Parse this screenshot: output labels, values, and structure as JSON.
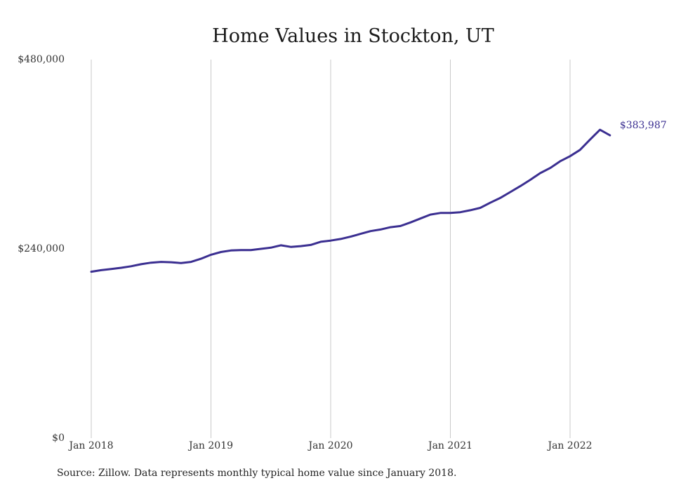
{
  "colors": {
    "line": "#3b2f91",
    "grid": "#c8c8c8"
  },
  "source_note": "Source: Zillow. Data represents monthly typical home value since January 2018.",
  "chart_data": {
    "type": "line",
    "title": "Home Values in Stockton, UT",
    "xlabel": "",
    "ylabel": "",
    "ylim": [
      0,
      480000
    ],
    "y_ticks": [
      0,
      240000,
      480000
    ],
    "y_tick_labels": [
      "$0",
      "$240,000",
      "$480,000"
    ],
    "x_ticks": [
      "2018-01",
      "2019-01",
      "2020-01",
      "2021-01",
      "2022-01"
    ],
    "x_tick_labels": [
      "Jan 2018",
      "Jan 2019",
      "Jan 2020",
      "Jan 2021",
      "Jan 2022"
    ],
    "grid": "vertical",
    "end_label": "$383,987",
    "series": [
      {
        "x": [
          "2018-01",
          "2018-02",
          "2018-03",
          "2018-04",
          "2018-05",
          "2018-06",
          "2018-07",
          "2018-08",
          "2018-09",
          "2018-10",
          "2018-11",
          "2018-12",
          "2019-01",
          "2019-02",
          "2019-03",
          "2019-04",
          "2019-05",
          "2019-06",
          "2019-07",
          "2019-08",
          "2019-09",
          "2019-10",
          "2019-11",
          "2019-12",
          "2020-01",
          "2020-02",
          "2020-03",
          "2020-04",
          "2020-05",
          "2020-06",
          "2020-07",
          "2020-08",
          "2020-09",
          "2020-10",
          "2020-11",
          "2020-12",
          "2021-01",
          "2021-02",
          "2021-03",
          "2021-04",
          "2021-05",
          "2021-06",
          "2021-07",
          "2021-08",
          "2021-09",
          "2021-10",
          "2021-11",
          "2021-12",
          "2022-01",
          "2022-02",
          "2022-03",
          "2022-04",
          "2022-05"
        ],
        "values": [
          211000,
          213000,
          214500,
          216000,
          218000,
          220500,
          222500,
          223500,
          223000,
          222000,
          223500,
          227500,
          232500,
          236000,
          238000,
          238500,
          238500,
          240000,
          241500,
          244500,
          242500,
          243500,
          245000,
          249000,
          250500,
          252500,
          255500,
          259000,
          262500,
          264500,
          267500,
          269000,
          273500,
          278500,
          283500,
          285500,
          285500,
          286500,
          289000,
          292000,
          298500,
          304500,
          312000,
          319500,
          327500,
          336000,
          342500,
          351000,
          357500,
          365500,
          378500,
          391000,
          383987
        ]
      }
    ]
  }
}
